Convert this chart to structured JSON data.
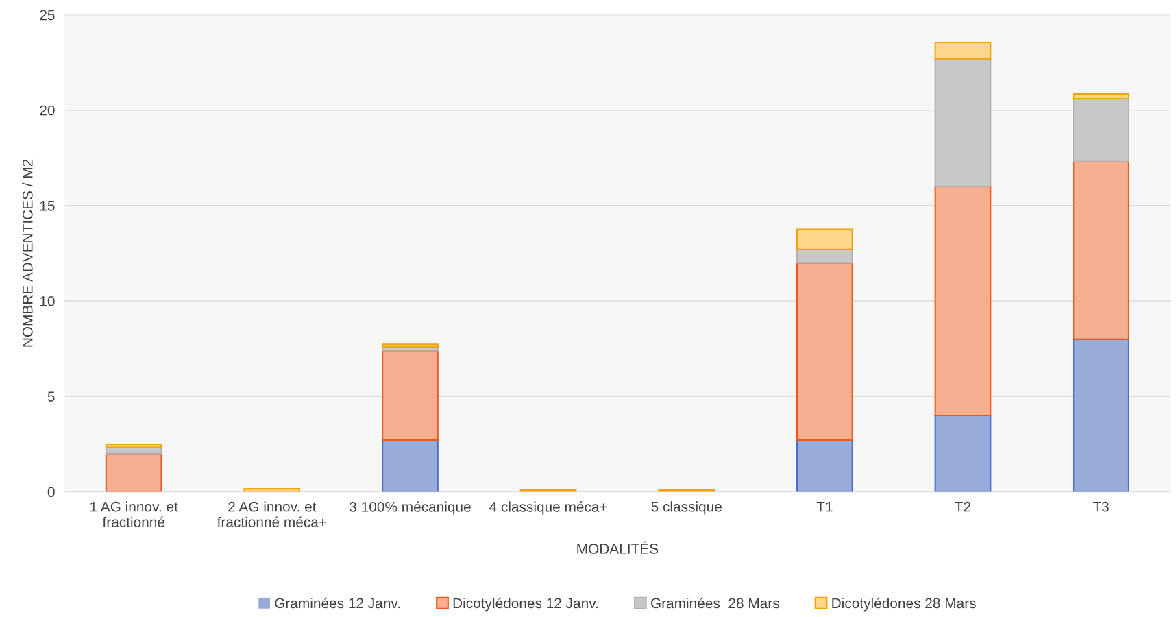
{
  "chart_data": {
    "type": "bar",
    "stacked": true,
    "xlabel": "MODALITÉS",
    "ylabel": "NOMBRE ADVENTICES / M2",
    "categories": [
      "1 AG innov. et\nfractionné",
      "2 AG innov. et\nfractionné méca+",
      "3 100% mécanique",
      "4 classique méca+",
      "5 classique",
      "T1",
      "T2",
      "T3"
    ],
    "series": [
      {
        "name": "Graminées 12 Janv.",
        "color": "#99abd9",
        "values": [
          0,
          0,
          2.7,
          0,
          0,
          2.7,
          4,
          8
        ]
      },
      {
        "name": "Dicotylédones 12 Janv.",
        "color": "#f5ae8f",
        "values": [
          2,
          0,
          4.7,
          0,
          0,
          9.3,
          12,
          9.3
        ]
      },
      {
        "name": "Graminées  28 Mars",
        "color": "#c8c8c8",
        "values": [
          0.33,
          0,
          0.2,
          0,
          0,
          0.7,
          6.7,
          3.3
        ]
      },
      {
        "name": "Dicotylédones 28 Mars",
        "color": "#fdd68a",
        "values": [
          0.15,
          0.15,
          0.13,
          0.08,
          0.08,
          1.05,
          0.85,
          0.25
        ]
      }
    ],
    "ylim": [
      0,
      25
    ],
    "yticks": [
      0,
      5,
      10,
      15,
      20,
      25
    ],
    "grid": "y",
    "legend": "bottom"
  }
}
